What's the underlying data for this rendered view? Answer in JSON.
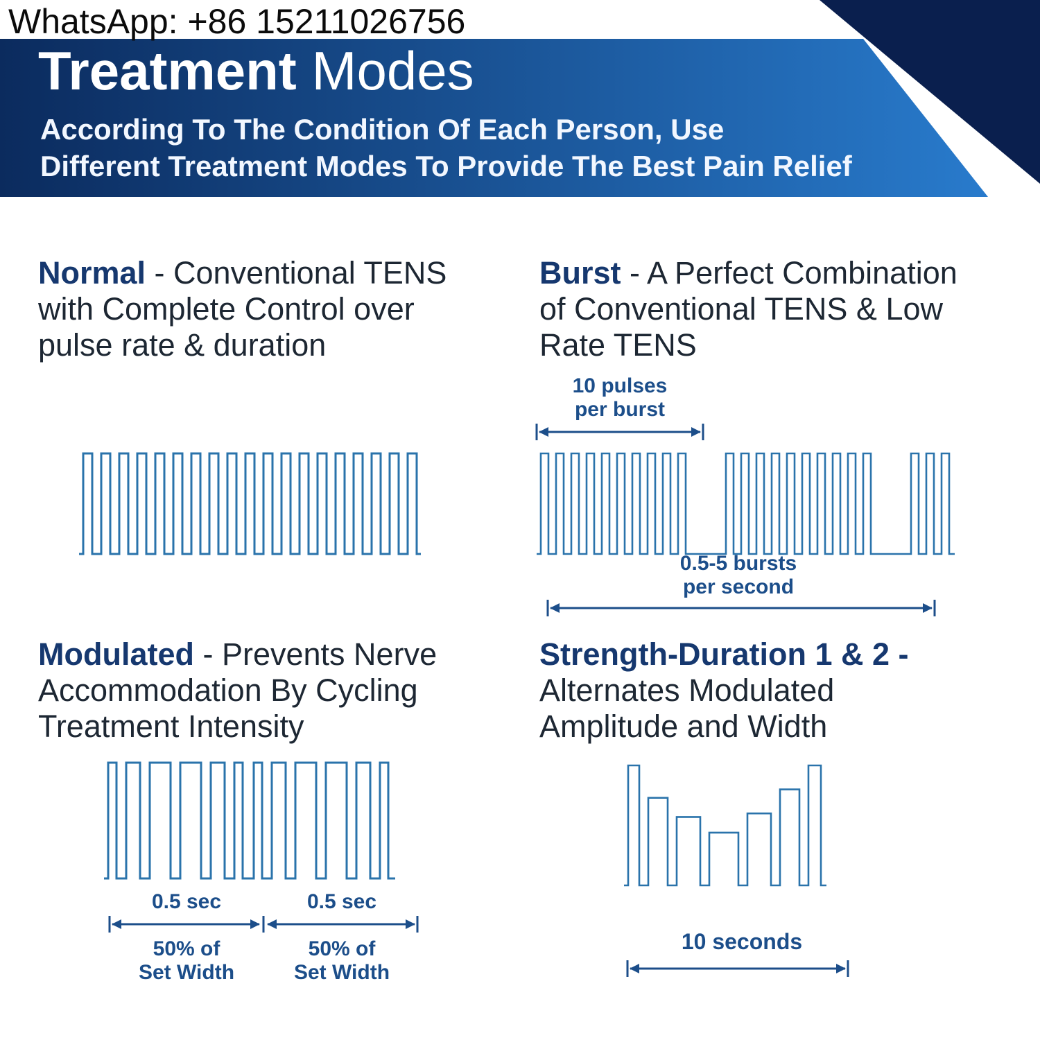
{
  "contact": {
    "whatsapp": "WhatsApp: +86 15211026756"
  },
  "banner": {
    "title_bold": "Treatment",
    "title_light": " Modes",
    "subtitle_line1": "According To The Condition Of Each Person, Use",
    "subtitle_line2": "Different Treatment Modes To Provide The Best Pain Relief"
  },
  "colors": {
    "accent": "#1c4e8a",
    "heading_navy": "#16386f",
    "body_text": "#1d2733",
    "wave_blue": "#2a73ab",
    "banner_gradient_start": "#0b2b5e",
    "banner_gradient_end": "#2a7fd2",
    "banner_fold": "#0a1f4e"
  },
  "modes": {
    "normal": {
      "title": "Normal",
      "title_rest": " - Conventional TENS",
      "line2": "with Complete Control over",
      "line3": "pulse rate & duration"
    },
    "burst": {
      "title": "Burst",
      "title_rest": " - A Perfect Combination",
      "line2": "of Conventional TENS & Low",
      "line3": "Rate TENS",
      "top_note_line1": "10 pulses",
      "top_note_line2": "per burst",
      "bottom_note_line1": "0.5-5 bursts",
      "bottom_note_line2": "per second"
    },
    "modulated": {
      "title": "Modulated",
      "title_rest": " - Prevents Nerve",
      "line2": "Accommodation By Cycling",
      "line3": "Treatment Intensity",
      "left_time": "0.5 sec",
      "right_time": "0.5 sec",
      "left_width_line1": "50% of",
      "left_width_line2": "Set Width",
      "right_width_line1": "50% of",
      "right_width_line2": "Set Width"
    },
    "strength": {
      "title": "Strength-Duration 1 & 2 -",
      "line2": "Alternates Modulated",
      "line3": "Amplitude and Width",
      "note": "10 seconds"
    }
  },
  "waveforms": {
    "wf-normal": {
      "stroke_width": 3,
      "pulses": [
        [
          13,
          1,
          13
        ],
        [
          13,
          1,
          13
        ],
        [
          13,
          1,
          13
        ],
        [
          13,
          1,
          13
        ],
        [
          13,
          1,
          13
        ],
        [
          13,
          1,
          13
        ],
        [
          13,
          1,
          13
        ],
        [
          13,
          1,
          13
        ],
        [
          13,
          1,
          13
        ],
        [
          13,
          1,
          13
        ],
        [
          13,
          1,
          13
        ],
        [
          13,
          1,
          13
        ],
        [
          13,
          1,
          13
        ],
        [
          13,
          1,
          13
        ],
        [
          13,
          1,
          13
        ],
        [
          13,
          1,
          13
        ],
        [
          13,
          1,
          13
        ],
        [
          13,
          1,
          13
        ],
        [
          13,
          1,
          6
        ]
      ]
    },
    "wf-burst": {
      "stroke_width": 2.6,
      "pulses": [
        [
          11,
          1,
          11
        ],
        [
          11,
          1,
          11
        ],
        [
          11,
          1,
          11
        ],
        [
          11,
          1,
          11
        ],
        [
          11,
          1,
          11
        ],
        [
          11,
          1,
          11
        ],
        [
          11,
          1,
          11
        ],
        [
          11,
          1,
          11
        ],
        [
          11,
          1,
          11
        ],
        [
          11,
          1,
          58
        ],
        [
          11,
          1,
          11
        ],
        [
          11,
          1,
          11
        ],
        [
          11,
          1,
          11
        ],
        [
          11,
          1,
          11
        ],
        [
          11,
          1,
          11
        ],
        [
          11,
          1,
          11
        ],
        [
          11,
          1,
          11
        ],
        [
          11,
          1,
          11
        ],
        [
          11,
          1,
          11
        ],
        [
          11,
          1,
          58
        ],
        [
          11,
          1,
          11
        ],
        [
          11,
          1,
          11
        ],
        [
          11,
          1,
          8
        ]
      ]
    },
    "wf-mod": {
      "stroke_width": 3,
      "pulses": [
        [
          12,
          1,
          14
        ],
        [
          20,
          1,
          14
        ],
        [
          30,
          1,
          14
        ],
        [
          30,
          1,
          14
        ],
        [
          20,
          1,
          14
        ],
        [
          12,
          1,
          16
        ],
        [
          12,
          1,
          14
        ],
        [
          20,
          1,
          14
        ],
        [
          30,
          1,
          14
        ],
        [
          30,
          1,
          14
        ],
        [
          20,
          1,
          14
        ],
        [
          12,
          1,
          10
        ]
      ]
    },
    "wf-sd": {
      "stroke_width": 2.6,
      "pulses": [
        [
          16,
          1,
          13
        ],
        [
          28,
          0.73,
          13
        ],
        [
          34,
          0.57,
          13
        ],
        [
          42,
          0.44,
          13
        ],
        [
          34,
          0.6,
          13
        ],
        [
          28,
          0.8,
          13
        ],
        [
          18,
          1,
          8
        ]
      ]
    }
  }
}
